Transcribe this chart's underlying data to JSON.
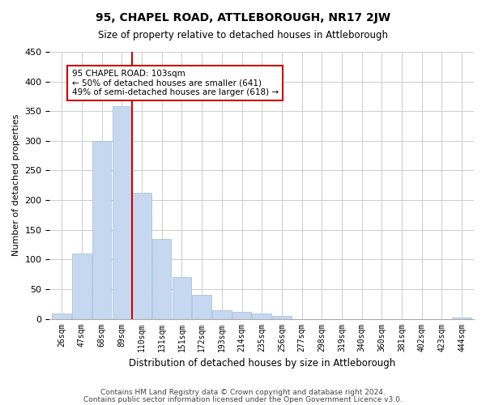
{
  "title": "95, CHAPEL ROAD, ATTLEBOROUGH, NR17 2JW",
  "subtitle": "Size of property relative to detached houses in Attleborough",
  "xlabel": "Distribution of detached houses by size in Attleborough",
  "ylabel": "Number of detached properties",
  "footnote1": "Contains HM Land Registry data © Crown copyright and database right 2024.",
  "footnote2": "Contains public sector information licensed under the Open Government Licence v3.0.",
  "bar_labels": [
    "26sqm",
    "47sqm",
    "68sqm",
    "89sqm",
    "110sqm",
    "131sqm",
    "151sqm",
    "172sqm",
    "193sqm",
    "214sqm",
    "235sqm",
    "256sqm",
    "277sqm",
    "298sqm",
    "319sqm",
    "340sqm",
    "360sqm",
    "381sqm",
    "402sqm",
    "423sqm",
    "444sqm"
  ],
  "bar_heights": [
    9,
    110,
    300,
    358,
    213,
    135,
    70,
    40,
    15,
    12,
    9,
    5,
    0,
    0,
    0,
    0,
    0,
    0,
    0,
    0,
    2
  ],
  "bar_color": "#c5d8f0",
  "bar_edge_color": "#a0bcd8",
  "vline_x": 3.5,
  "vline_color": "#cc0000",
  "ylim": [
    0,
    450
  ],
  "yticks": [
    0,
    50,
    100,
    150,
    200,
    250,
    300,
    350,
    400,
    450
  ],
  "annotation_title": "95 CHAPEL ROAD: 103sqm",
  "annotation_line1": "← 50% of detached houses are smaller (641)",
  "annotation_line2": "49% of semi-detached houses are larger (618) →",
  "background_color": "#ffffff",
  "grid_color": "#cccccc"
}
